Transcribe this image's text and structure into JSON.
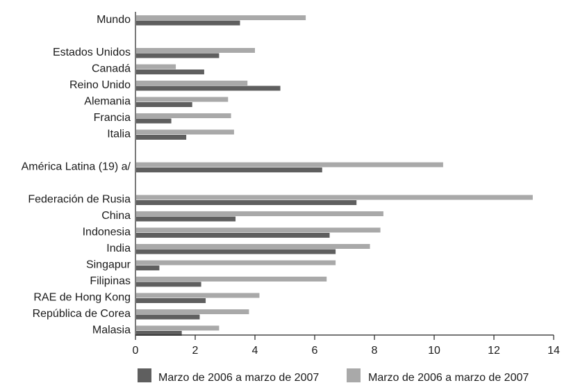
{
  "chart_data": {
    "type": "bar",
    "orientation": "horizontal",
    "title": "",
    "xlabel": "",
    "ylabel": "",
    "xlim": [
      0,
      14
    ],
    "x_ticks": [
      0,
      2,
      4,
      6,
      8,
      10,
      12,
      14
    ],
    "grid": false,
    "legend_position": "bottom",
    "categories": [
      "Mundo",
      "",
      "Estados Unidos",
      "Canadá",
      "Reino Unido",
      "Alemania",
      "Francia",
      "Italia",
      "",
      "América Latina (19) a/",
      "",
      "Federación de Rusia",
      "China",
      "Indonesia",
      "India",
      "Singapur",
      "Filipinas",
      "RAE de Hong Kong",
      "República de Corea",
      "Malasia"
    ],
    "series": [
      {
        "name": "Marzo de 2006 a marzo de 2007",
        "color": "#a9a9a9",
        "values": [
          5.7,
          null,
          4.0,
          1.35,
          3.75,
          3.1,
          3.2,
          3.3,
          null,
          10.3,
          null,
          13.3,
          8.3,
          8.2,
          7.85,
          6.7,
          6.4,
          4.15,
          3.8,
          2.8
        ]
      },
      {
        "name": "Marzo de 2006 a marzo de 2007",
        "color": "#5f5f5f",
        "values": [
          3.5,
          null,
          2.8,
          2.3,
          4.85,
          1.9,
          1.2,
          1.7,
          null,
          6.25,
          null,
          7.4,
          3.35,
          6.5,
          6.7,
          0.8,
          2.2,
          2.35,
          2.15,
          1.55
        ]
      }
    ],
    "legend": [
      {
        "label": "Marzo de 2006 a marzo de 2007",
        "color": "#5f5f5f"
      },
      {
        "label": "Marzo de 2006 a marzo de 2007",
        "color": "#a9a9a9"
      }
    ]
  }
}
